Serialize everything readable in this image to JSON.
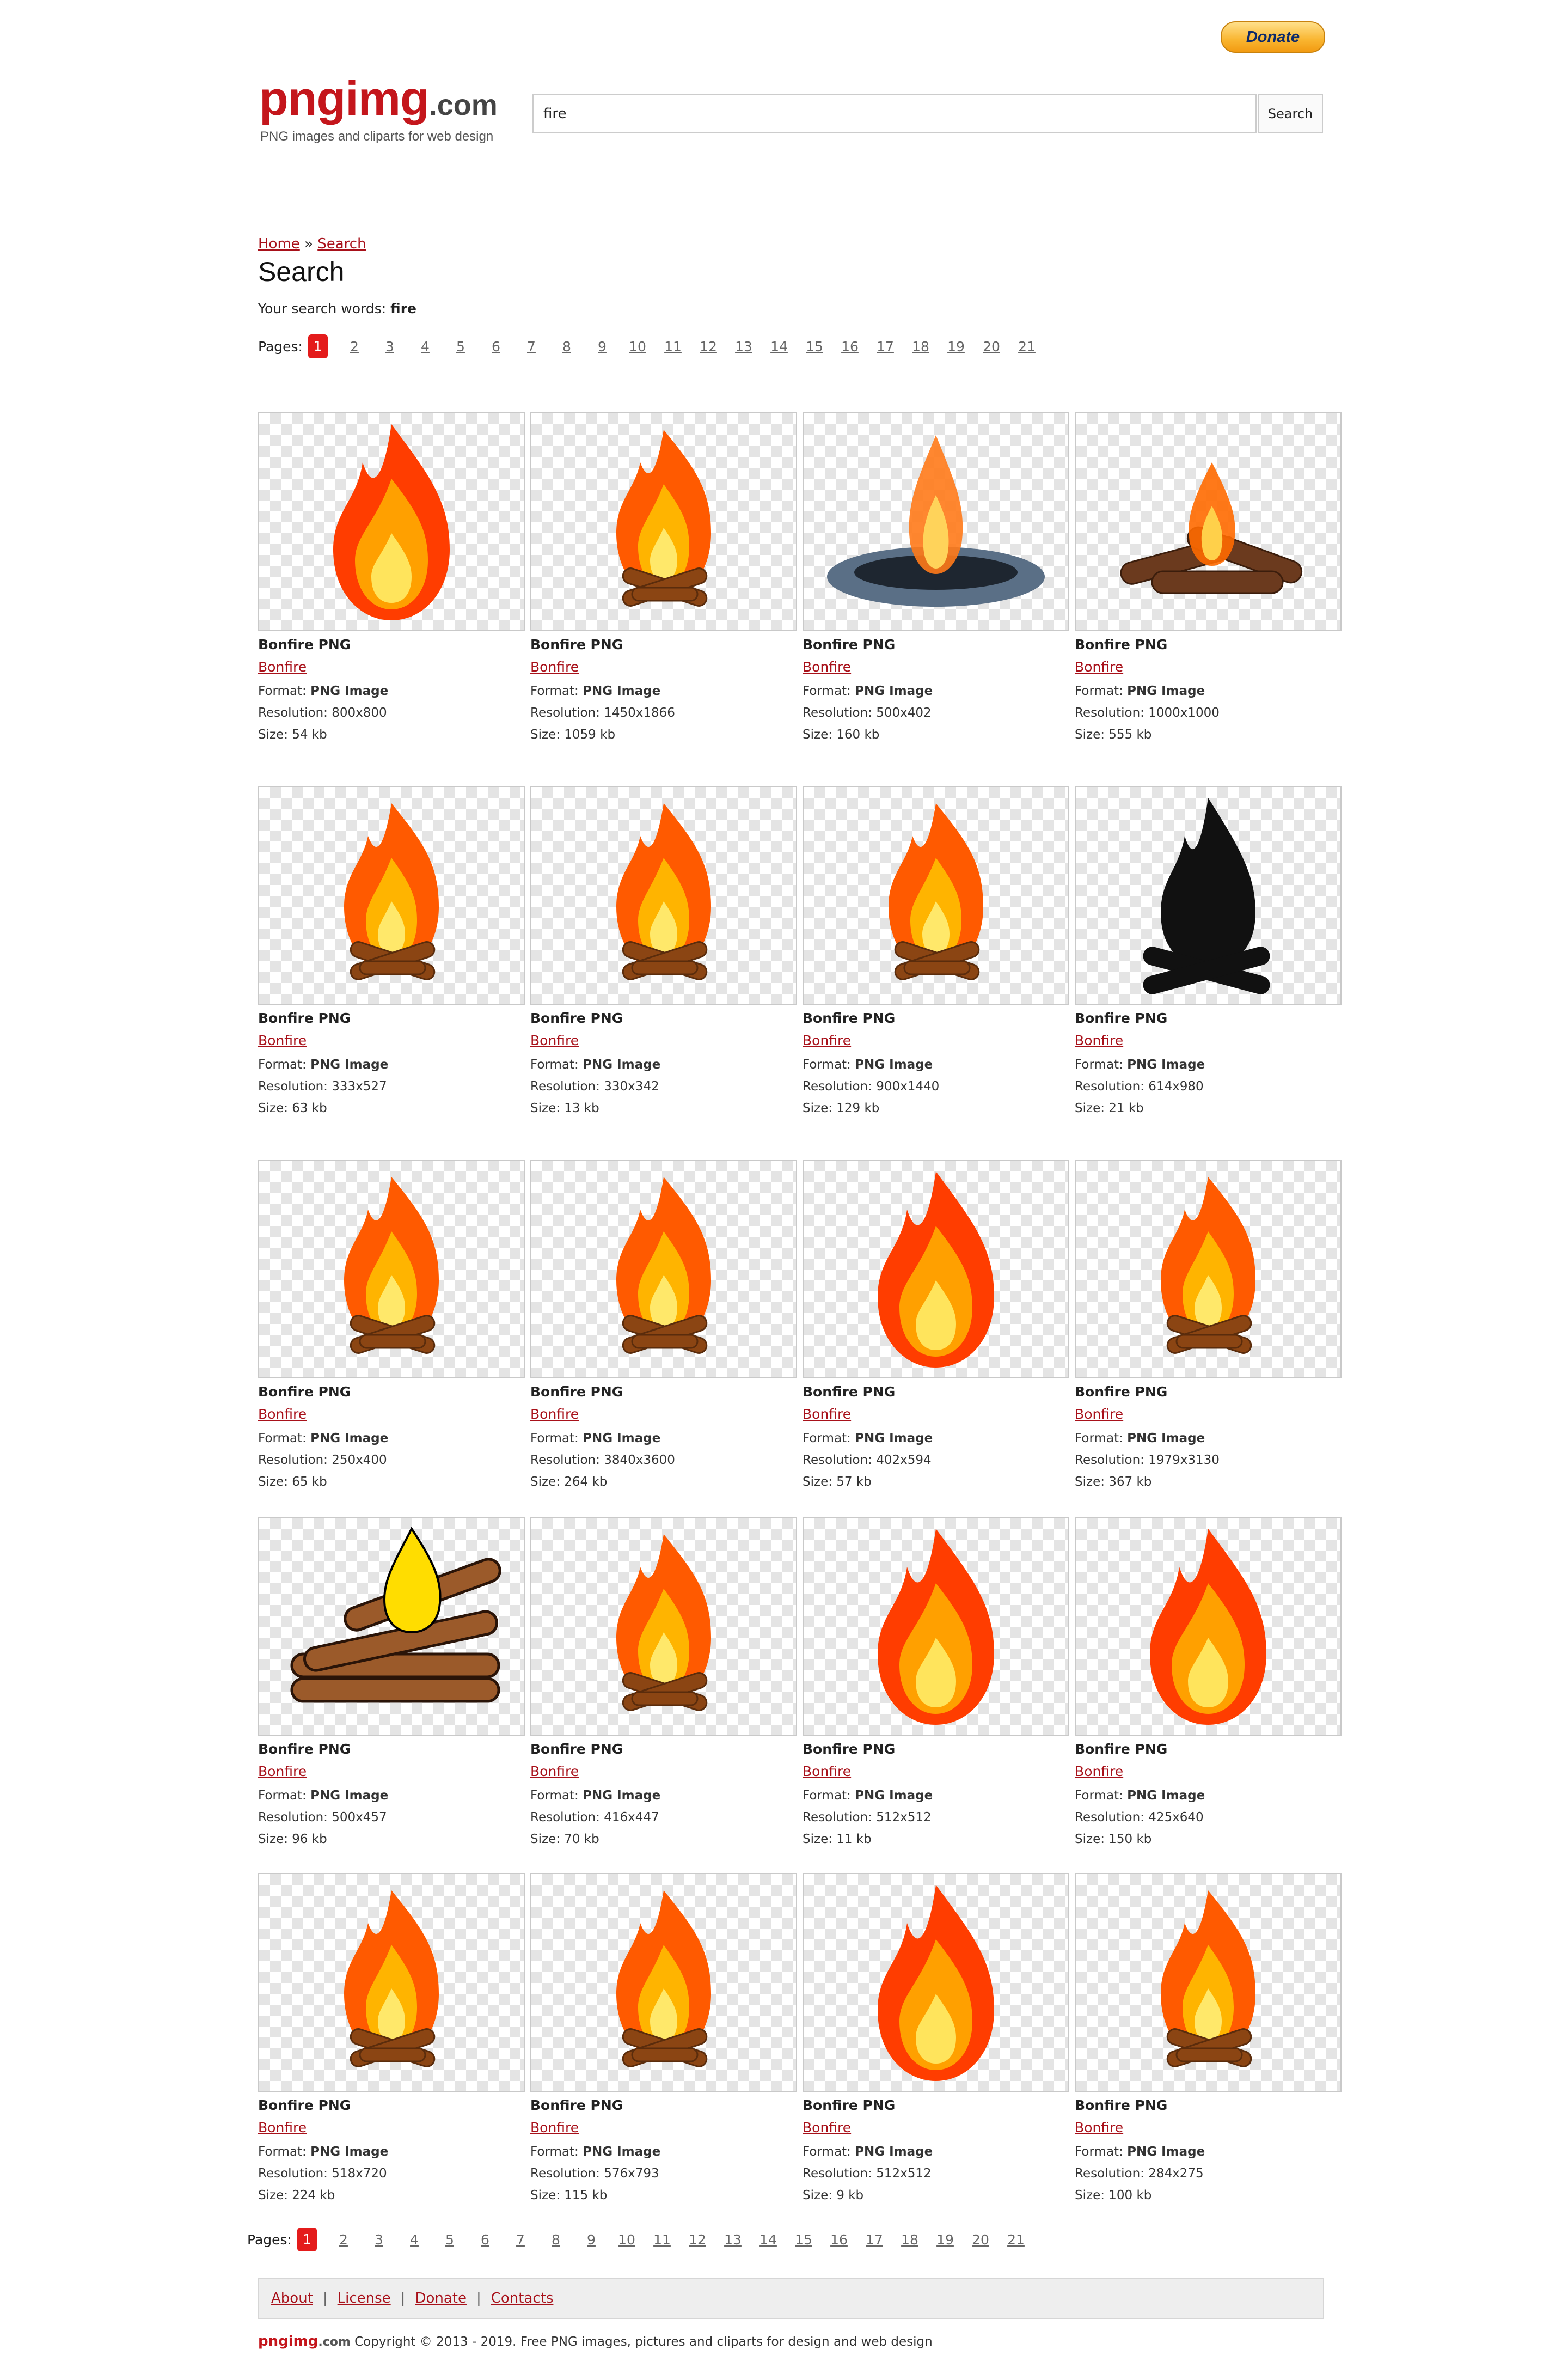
{
  "header": {
    "donate_label": "Donate",
    "logo_main": "pngimg",
    "logo_tld": ".com",
    "tagline": "PNG images and cliparts for web design",
    "search_value": "fire",
    "search_button": "Search"
  },
  "breadcrumb": {
    "home": "Home",
    "sep": "»",
    "search": "Search"
  },
  "page_title": "Search",
  "search_words_label": "Your search words:",
  "search_words_value": "fire",
  "pagination": {
    "label": "Pages:",
    "current": "1",
    "pages": [
      "1",
      "2",
      "3",
      "4",
      "5",
      "6",
      "7",
      "8",
      "9",
      "10",
      "11",
      "12",
      "13",
      "14",
      "15",
      "16",
      "17",
      "18",
      "19",
      "20",
      "21"
    ]
  },
  "labels": {
    "format": "Format:",
    "resolution": "Resolution:",
    "size": "Size:"
  },
  "items": [
    {
      "title": "Bonfire PNG",
      "category": "Bonfire",
      "format": "PNG Image",
      "resolution": "800x800",
      "size": "54 kb",
      "icon": "flame-icon"
    },
    {
      "title": "Bonfire PNG",
      "category": "Bonfire",
      "format": "PNG Image",
      "resolution": "1450x1866",
      "size": "1059 kb",
      "icon": "campfire-icon"
    },
    {
      "title": "Bonfire PNG",
      "category": "Bonfire",
      "format": "PNG Image",
      "resolution": "500x402",
      "size": "160 kb",
      "icon": "fire-pit-icon"
    },
    {
      "title": "Bonfire PNG",
      "category": "Bonfire",
      "format": "PNG Image",
      "resolution": "1000x1000",
      "size": "555 kb",
      "icon": "burning-logs-icon"
    },
    {
      "title": "Bonfire PNG",
      "category": "Bonfire",
      "format": "PNG Image",
      "resolution": "333x527",
      "size": "63 kb",
      "icon": "campfire-icon"
    },
    {
      "title": "Bonfire PNG",
      "category": "Bonfire",
      "format": "PNG Image",
      "resolution": "330x342",
      "size": "13 kb",
      "icon": "campfire-icon"
    },
    {
      "title": "Bonfire PNG",
      "category": "Bonfire",
      "format": "PNG Image",
      "resolution": "900x1440",
      "size": "129 kb",
      "icon": "campfire-icon"
    },
    {
      "title": "Bonfire PNG",
      "category": "Bonfire",
      "format": "PNG Image",
      "resolution": "614x980",
      "size": "21 kb",
      "icon": "campfire-silhouette-icon"
    },
    {
      "title": "Bonfire PNG",
      "category": "Bonfire",
      "format": "PNG Image",
      "resolution": "250x400",
      "size": "65 kb",
      "icon": "campfire-icon"
    },
    {
      "title": "Bonfire PNG",
      "category": "Bonfire",
      "format": "PNG Image",
      "resolution": "3840x3600",
      "size": "264 kb",
      "icon": "campfire-icon"
    },
    {
      "title": "Bonfire PNG",
      "category": "Bonfire",
      "format": "PNG Image",
      "resolution": "402x594",
      "size": "57 kb",
      "icon": "flame-icon"
    },
    {
      "title": "Bonfire PNG",
      "category": "Bonfire",
      "format": "PNG Image",
      "resolution": "1979x3130",
      "size": "367 kb",
      "icon": "campfire-icon"
    },
    {
      "title": "Bonfire PNG",
      "category": "Bonfire",
      "format": "PNG Image",
      "resolution": "500x457",
      "size": "96 kb",
      "icon": "log-fire-icon"
    },
    {
      "title": "Bonfire PNG",
      "category": "Bonfire",
      "format": "PNG Image",
      "resolution": "416x447",
      "size": "70 kb",
      "icon": "campfire-icon"
    },
    {
      "title": "Bonfire PNG",
      "category": "Bonfire",
      "format": "PNG Image",
      "resolution": "512x512",
      "size": "11 kb",
      "icon": "flame-icon"
    },
    {
      "title": "Bonfire PNG",
      "category": "Bonfire",
      "format": "PNG Image",
      "resolution": "425x640",
      "size": "150 kb",
      "icon": "flame-icon"
    },
    {
      "title": "Bonfire PNG",
      "category": "Bonfire",
      "format": "PNG Image",
      "resolution": "518x720",
      "size": "224 kb",
      "icon": "campfire-icon"
    },
    {
      "title": "Bonfire PNG",
      "category": "Bonfire",
      "format": "PNG Image",
      "resolution": "576x793",
      "size": "115 kb",
      "icon": "campfire-icon"
    },
    {
      "title": "Bonfire PNG",
      "category": "Bonfire",
      "format": "PNG Image",
      "resolution": "512x512",
      "size": "9 kb",
      "icon": "flame-icon"
    },
    {
      "title": "Bonfire PNG",
      "category": "Bonfire",
      "format": "PNG Image",
      "resolution": "284x275",
      "size": "100 kb",
      "icon": "campfire-icon"
    }
  ],
  "footer": {
    "links": [
      "About",
      "License",
      "Donate",
      "Contacts"
    ],
    "brand": "pngimg",
    "brand_tld": ".com",
    "copyright": "Copyright © 2013 - 2019. Free PNG images, pictures and cliparts for design and web design"
  },
  "colors": {
    "brand_red": "#c4161c",
    "link_red": "#a8111a",
    "page_active": "#e41b1b"
  }
}
